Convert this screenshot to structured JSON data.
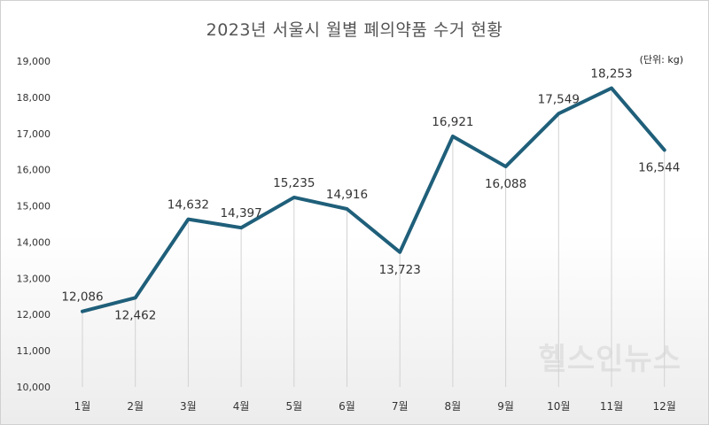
{
  "chart_data": {
    "type": "line",
    "title": "2023년 서울시 월별 폐의약품 수거 현황",
    "unit_label": "(단위: kg)",
    "categories": [
      "1월",
      "2월",
      "3월",
      "4월",
      "5월",
      "6월",
      "7월",
      "8월",
      "9월",
      "10월",
      "11월",
      "12월"
    ],
    "series": [
      {
        "values": [
          12086,
          12462,
          14632,
          14397,
          15235,
          14916,
          13723,
          16921,
          16088,
          17549,
          18253,
          16544
        ]
      }
    ],
    "value_labels": [
      "12,086",
      "12,462",
      "14,632",
      "14,397",
      "15,235",
      "14,916",
      "13,723",
      "16,921",
      "16,088",
      "17,549",
      "18,253",
      "16,544"
    ],
    "ylim": [
      10000,
      19000
    ],
    "y_ticks": [
      10000,
      11000,
      12000,
      13000,
      14000,
      15000,
      16000,
      17000,
      18000,
      19000
    ],
    "y_tick_labels": [
      "10,000",
      "11,000",
      "12,000",
      "13,000",
      "14,000",
      "15,000",
      "16,000",
      "17,000",
      "18,000",
      "19,000"
    ],
    "line_color": "#1f5f7a",
    "grid": false
  },
  "watermark_text": "헬스인뉴스"
}
